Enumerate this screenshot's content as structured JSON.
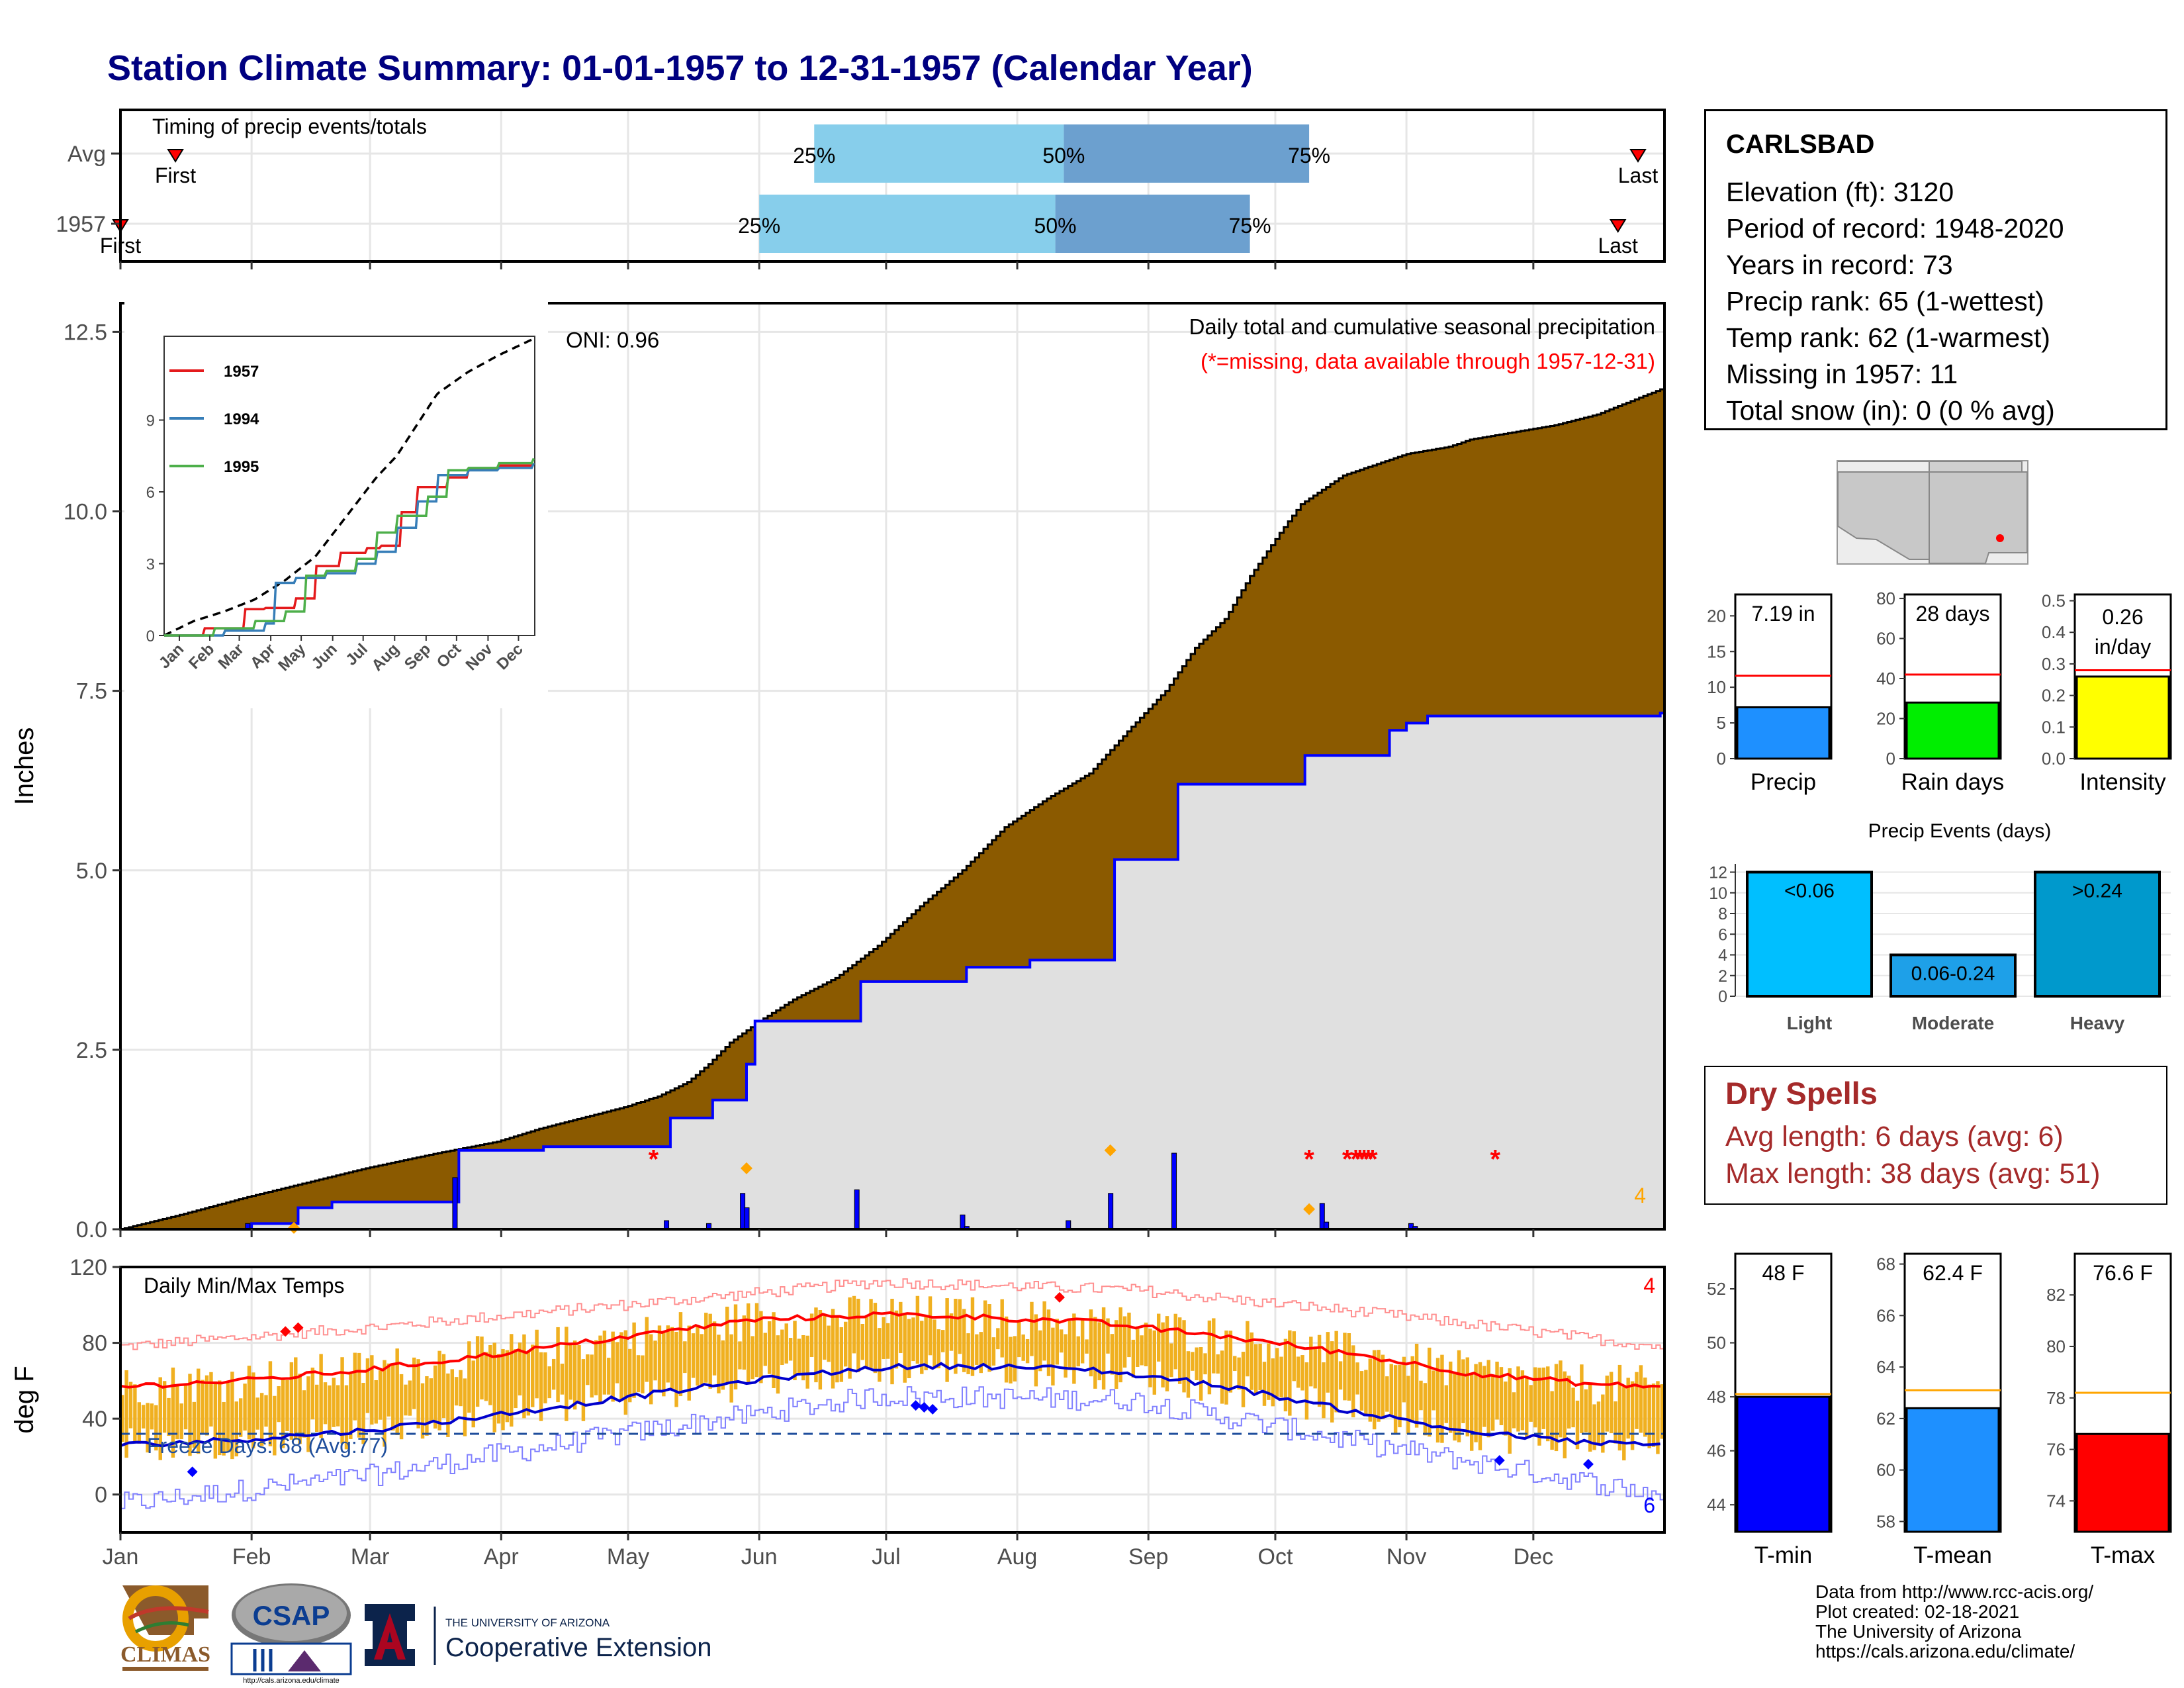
{
  "title": "Station Climate Summary: 01-01-1957 to 12-31-1957 (Calendar Year)",
  "colors": {
    "title": "#000080",
    "cum_avg_fill": "#8b5a00",
    "cum_year_fill": "#e0e0e0",
    "precip_line": "#0000ff",
    "light_blue": "#87ceeb",
    "steel_blue": "#6ca0cf",
    "temp_bar": "#f0b020",
    "tmax": "#ff0000",
    "tmin": "#0000cc",
    "dry": "#a52a2a"
  },
  "timing_panel": {
    "title": "Timing of precip events/totals",
    "rows": [
      {
        "label": "Avg",
        "first_label": "First",
        "last_label": "Last",
        "p25": "25%",
        "p50": "50%",
        "p75": "75%",
        "first_doy": 14,
        "q25_doy": 165,
        "q50_doy": 224,
        "q75_doy": 282,
        "last_doy": 385
      },
      {
        "label": "1957",
        "first_label": "First",
        "last_label": "Last",
        "p25": "25%",
        "p50": "50%",
        "p75": "75%",
        "first_doy": 1,
        "q25_doy": 152,
        "q50_doy": 222,
        "q75_doy": 268,
        "last_doy": 355
      }
    ]
  },
  "station": {
    "name": "CARLSBAD",
    "lines": [
      "Elevation (ft): 3120",
      "Period of record: 1948-2020",
      "Years in record: 73",
      "Precip rank: 65 (1-wettest)",
      "Temp rank: 62 (1-warmest)",
      "Missing in 1957: 11",
      "Total snow (in): 0 (0 % avg)"
    ]
  },
  "main_chart": {
    "ylabel": "Inches",
    "caption": "Daily total and cumulative seasonal precipitation",
    "missing_note": "(*=missing, data available through 1957-12-31)",
    "oni": "ONI: 0.96",
    "corner_count": "4",
    "yticks": [
      "0.0",
      "2.5",
      "5.0",
      "7.5",
      "10.0",
      "12.5"
    ]
  },
  "inset": {
    "legend": [
      "1957",
      "1994",
      "1995"
    ],
    "legend_colors": [
      "#e41a1c",
      "#377eb8",
      "#4daf4a"
    ],
    "yticks": [
      "0",
      "3",
      "6",
      "9"
    ],
    "xticks": [
      "Jan",
      "Feb",
      "Mar",
      "Apr",
      "May",
      "Jun",
      "Jul",
      "Aug",
      "Sep",
      "Oct",
      "Nov",
      "Dec"
    ]
  },
  "temp_chart": {
    "ylabel": "deg F",
    "title": "Daily Min/Max Temps",
    "freeze": "Freeze Days: 68 (Avg:77)",
    "count_max": "4",
    "count_min": "6",
    "yticks": [
      "0",
      "40",
      "80",
      "120"
    ],
    "months": [
      "Jan",
      "Feb",
      "Mar",
      "Apr",
      "May",
      "Jun",
      "Jul",
      "Aug",
      "Sep",
      "Oct",
      "Nov",
      "Dec"
    ]
  },
  "precip_mini": [
    {
      "label": "Precip",
      "value_text": "7.19 in",
      "value": 7.19,
      "avg": 11.6,
      "ymax": 23,
      "ticks": [
        "0",
        "5",
        "10",
        "15",
        "20"
      ],
      "tickvals": [
        0,
        5,
        10,
        15,
        20
      ],
      "color": "#1e90ff"
    },
    {
      "label": "Rain days",
      "value_text": "28 days",
      "value": 28,
      "avg": 42,
      "ymax": 82,
      "ticks": [
        "0",
        "20",
        "40",
        "60",
        "80"
      ],
      "tickvals": [
        0,
        20,
        40,
        60,
        80
      ],
      "color": "#00ee00"
    },
    {
      "label": "Intensity",
      "value_text": "0.26 in/day",
      "value": 0.26,
      "avg": 0.28,
      "ymax": 0.52,
      "ticks": [
        "0.0",
        "0.1",
        "0.2",
        "0.3",
        "0.4",
        "0.5"
      ],
      "tickvals": [
        0,
        0.1,
        0.2,
        0.3,
        0.4,
        0.5
      ],
      "color": "#ffff00"
    }
  ],
  "events": {
    "title": "Precip Events (days)",
    "yticks": [
      "0",
      "2",
      "4",
      "6",
      "8",
      "10",
      "12"
    ],
    "bars": [
      {
        "label": "Light",
        "value_text": "<0.06",
        "value": 12,
        "color": "#00bfff"
      },
      {
        "label": "Moderate",
        "value_text": "0.06-0.24",
        "value": 4,
        "color": "#1ea0e8"
      },
      {
        "label": "Heavy",
        "value_text": ">0.24",
        "value": 12,
        "color": "#0099cc"
      }
    ]
  },
  "dry_spells": {
    "title": "Dry Spells",
    "avg_length": "Avg length: 6 days (avg: 6)",
    "max_length": "Max length: 38 days (avg: 51)"
  },
  "temp_mini": [
    {
      "label": "T-min",
      "value_text": "48 F",
      "value": 48,
      "avg": 48.1,
      "ymin": 43,
      "ymax": 53.3,
      "ticks": [
        "44",
        "46",
        "48",
        "50",
        "52"
      ],
      "tickvals": [
        44,
        46,
        48,
        50,
        52
      ],
      "color": "#0000ff"
    },
    {
      "label": "T-mean",
      "value_text": "62.4 F",
      "value": 62.4,
      "avg": 63.1,
      "ymin": 57.6,
      "ymax": 68.4,
      "ticks": [
        "58",
        "60",
        "62",
        "64",
        "66",
        "68"
      ],
      "tickvals": [
        58,
        60,
        62,
        64,
        66,
        68
      ],
      "color": "#1e90ff"
    },
    {
      "label": "T-max",
      "value_text": "76.6 F",
      "value": 76.6,
      "avg": 78.2,
      "ymin": 72.8,
      "ymax": 83.6,
      "ticks": [
        "74",
        "76",
        "78",
        "80",
        "82"
      ],
      "tickvals": [
        74,
        76,
        78,
        80,
        82
      ],
      "color": "#ff0000"
    }
  ],
  "credits": [
    "Data from http://www.rcc-acis.org/",
    "Plot created: 02-18-2021",
    "The University of Arizona",
    "https://cals.arizona.edu/climate/"
  ],
  "logos": {
    "climas": "CLIMAS",
    "csap": "CSAP",
    "csap_url": "http://cals.arizona.edu/climate",
    "ua_small": "THE UNIVERSITY OF ARIZONA",
    "ua_big": "Cooperative Extension"
  },
  "chart_data": [
    {
      "type": "area",
      "title": "Daily total and cumulative seasonal precipitation",
      "ylabel": "Inches",
      "ylim": [
        0,
        12.9
      ],
      "x_unit": "day of year 1957",
      "series": [
        {
          "name": "Avg cumulative",
          "x": [
            1,
            15,
            31,
            45,
            59,
            75,
            90,
            100,
            110,
            120,
            128,
            135,
            140,
            145,
            152,
            160,
            170,
            180,
            190,
            200,
            210,
            220,
            230,
            240,
            248,
            255,
            262,
            268,
            275,
            280,
            290,
            300,
            305,
            315,
            320,
            330,
            340,
            350,
            365
          ],
          "values": [
            0,
            0.2,
            0.45,
            0.65,
            0.85,
            1.05,
            1.22,
            1.4,
            1.55,
            1.7,
            1.85,
            2.05,
            2.3,
            2.6,
            2.9,
            3.2,
            3.5,
            3.95,
            4.5,
            5.0,
            5.6,
            6.0,
            6.35,
            7.0,
            7.5,
            8.1,
            8.5,
            9.1,
            9.7,
            10.1,
            10.5,
            10.7,
            10.8,
            10.9,
            11.0,
            11.1,
            11.2,
            11.35,
            11.7
          ]
        },
        {
          "name": "1957 cumulative",
          "x": [
            1,
            31,
            32,
            42,
            43,
            50,
            51,
            80,
            81,
            100,
            101,
            130,
            131,
            140,
            141,
            148,
            149,
            150,
            151,
            175,
            176,
            200,
            201,
            215,
            216,
            235,
            236,
            250,
            251,
            280,
            281,
            300,
            301,
            305,
            310,
            365
          ],
          "values": [
            0,
            0,
            0.08,
            0.08,
            0.3,
            0.3,
            0.38,
            0.38,
            1.1,
            1.1,
            1.15,
            1.15,
            1.55,
            1.55,
            1.8,
            1.8,
            2.3,
            2.3,
            2.9,
            2.9,
            3.45,
            3.45,
            3.65,
            3.65,
            3.75,
            3.75,
            5.15,
            5.15,
            6.2,
            6.2,
            6.6,
            6.6,
            6.95,
            7.05,
            7.15,
            7.19
          ]
        }
      ],
      "daily_precip": {
        "x": [
          1,
          31,
          42,
          80,
          130,
          140,
          148,
          149,
          175,
          200,
          201,
          225,
          235,
          250,
          285,
          286,
          306,
          307
        ],
        "values": [
          0.01,
          0.08,
          0.05,
          0.72,
          0.12,
          0.08,
          0.5,
          0.3,
          0.55,
          0.2,
          0.04,
          0.12,
          0.5,
          1.06,
          0.36,
          0.1,
          0.08,
          0.04
        ]
      },
      "missing_days": [
        127,
        282,
        291,
        293,
        294,
        295,
        296,
        297,
        326
      ]
    },
    {
      "type": "line",
      "title": "",
      "ylim": [
        0,
        12.5
      ],
      "series": [
        {
          "name": "Avg",
          "x": [
            1,
            30,
            60,
            90,
            120,
            150,
            170,
            190,
            210,
            230,
            250,
            270,
            300,
            330,
            365
          ],
          "values": [
            0,
            0.6,
            1.0,
            1.5,
            2.3,
            3.3,
            4.4,
            5.5,
            6.6,
            7.5,
            8.8,
            10.1,
            11.0,
            11.7,
            12.4
          ]
        },
        {
          "name": "1957",
          "x": [
            1,
            40,
            80,
            100,
            130,
            150,
            175,
            200,
            215,
            235,
            250,
            280,
            300,
            330,
            365
          ],
          "values": [
            0,
            0.3,
            1.1,
            1.15,
            1.55,
            2.9,
            3.45,
            3.65,
            3.75,
            5.15,
            6.2,
            6.6,
            6.95,
            7.1,
            7.19
          ]
        },
        {
          "name": "1994",
          "x": [
            1,
            60,
            100,
            110,
            130,
            160,
            190,
            210,
            230,
            250,
            270,
            300,
            330,
            365
          ],
          "values": [
            0,
            0.2,
            0.5,
            2.2,
            2.4,
            2.6,
            3.0,
            3.5,
            4.5,
            5.6,
            6.7,
            6.9,
            7.0,
            7.2
          ]
        },
        {
          "name": "1995",
          "x": [
            1,
            50,
            90,
            120,
            140,
            160,
            190,
            210,
            230,
            260,
            280,
            300,
            330,
            365
          ],
          "values": [
            0,
            0.3,
            0.6,
            1.0,
            2.5,
            2.7,
            3.2,
            4.3,
            5.0,
            5.8,
            6.9,
            7.0,
            7.2,
            7.4
          ]
        }
      ]
    },
    {
      "type": "line",
      "title": "Daily Min/Max Temps",
      "ylabel": "deg F",
      "ylim": [
        -20,
        120
      ],
      "series": [
        {
          "name": "Avg Tmax",
          "x": [
            1,
            30,
            60,
            90,
            120,
            150,
            180,
            200,
            230,
            260,
            290,
            320,
            350,
            365
          ],
          "values": [
            57,
            60,
            66,
            74,
            83,
            92,
            95,
            94,
            91,
            84,
            75,
            64,
            58,
            57
          ]
        },
        {
          "name": "Avg Tmin",
          "x": [
            1,
            30,
            60,
            90,
            120,
            150,
            180,
            200,
            230,
            260,
            290,
            320,
            350,
            365
          ],
          "values": [
            26,
            29,
            34,
            42,
            51,
            60,
            67,
            68,
            66,
            58,
            45,
            33,
            27,
            26
          ]
        },
        {
          "name": "Record high",
          "x": [
            1,
            60,
            120,
            180,
            240,
            300,
            365
          ],
          "values": [
            78,
            88,
            100,
            112,
            108,
            95,
            78
          ]
        },
        {
          "name": "Record low",
          "x": [
            1,
            60,
            120,
            180,
            240,
            300,
            365
          ],
          "values": [
            -5,
            10,
            32,
            52,
            50,
            25,
            0
          ]
        },
        {
          "name": "Freeze line",
          "x": [
            1,
            365
          ],
          "values": [
            32,
            32
          ]
        }
      ]
    },
    {
      "type": "bar",
      "title": "Precip Events (days)",
      "categories": [
        "Light",
        "Moderate",
        "Heavy"
      ],
      "values": [
        12,
        4,
        12
      ]
    }
  ]
}
